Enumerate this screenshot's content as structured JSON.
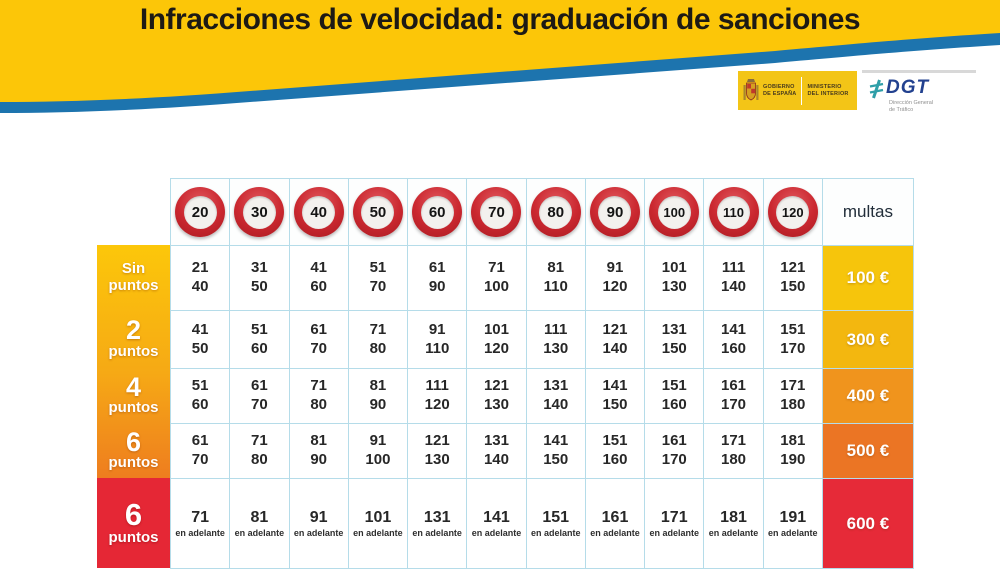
{
  "title": "Infracciones de velocidad: graduación de sanciones",
  "logos": {
    "gobierno": {
      "line1": "GOBIERNO",
      "line2": "DE ESPAÑA"
    },
    "ministerio": {
      "line1": "MINISTERIO",
      "line2": "DEL INTERIOR"
    },
    "dgt": {
      "name": "DGT",
      "subtitle1": "Dirección General",
      "subtitle2": "de Tráfico"
    }
  },
  "colors": {
    "banner_yellow": "#fcc608",
    "banner_blue": "#1d74ae",
    "grid_border": "#b5dce9",
    "label_gradient_top": "#fcc70a",
    "label_gradient_bottom": "#ee7d1f",
    "red_row": "#e52735",
    "fine_colors": [
      "#f6c50c",
      "#f3b70f",
      "#f0941d",
      "#eb7524",
      "#e62a38"
    ]
  },
  "table": {
    "speed_limits": [
      "20",
      "30",
      "40",
      "50",
      "60",
      "70",
      "80",
      "90",
      "100",
      "110",
      "120"
    ],
    "multas_label": "multas",
    "onward_note": "en adelante",
    "rows": [
      {
        "label_top": "Sin",
        "label_bottom": "puntos",
        "fine": "100 €",
        "ranges": [
          [
            "21",
            "40"
          ],
          [
            "31",
            "50"
          ],
          [
            "41",
            "60"
          ],
          [
            "51",
            "70"
          ],
          [
            "61",
            "90"
          ],
          [
            "71",
            "100"
          ],
          [
            "81",
            "110"
          ],
          [
            "91",
            "120"
          ],
          [
            "101",
            "130"
          ],
          [
            "111",
            "140"
          ],
          [
            "121",
            "150"
          ]
        ]
      },
      {
        "label_top": "2",
        "label_bottom": "puntos",
        "fine": "300 €",
        "ranges": [
          [
            "41",
            "50"
          ],
          [
            "51",
            "60"
          ],
          [
            "61",
            "70"
          ],
          [
            "71",
            "80"
          ],
          [
            "91",
            "110"
          ],
          [
            "101",
            "120"
          ],
          [
            "111",
            "130"
          ],
          [
            "121",
            "140"
          ],
          [
            "131",
            "150"
          ],
          [
            "141",
            "160"
          ],
          [
            "151",
            "170"
          ]
        ]
      },
      {
        "label_top": "4",
        "label_bottom": "puntos",
        "fine": "400 €",
        "ranges": [
          [
            "51",
            "60"
          ],
          [
            "61",
            "70"
          ],
          [
            "71",
            "80"
          ],
          [
            "81",
            "90"
          ],
          [
            "111",
            "120"
          ],
          [
            "121",
            "130"
          ],
          [
            "131",
            "140"
          ],
          [
            "141",
            "150"
          ],
          [
            "151",
            "160"
          ],
          [
            "161",
            "170"
          ],
          [
            "171",
            "180"
          ]
        ]
      },
      {
        "label_top": "6",
        "label_bottom": "puntos",
        "fine": "500 €",
        "ranges": [
          [
            "61",
            "70"
          ],
          [
            "71",
            "80"
          ],
          [
            "81",
            "90"
          ],
          [
            "91",
            "100"
          ],
          [
            "121",
            "130"
          ],
          [
            "131",
            "140"
          ],
          [
            "141",
            "150"
          ],
          [
            "151",
            "160"
          ],
          [
            "161",
            "170"
          ],
          [
            "171",
            "180"
          ],
          [
            "181",
            "190"
          ]
        ]
      },
      {
        "label_top": "6",
        "label_bottom": "puntos",
        "fine": "600 €",
        "onward": [
          "71",
          "81",
          "91",
          "101",
          "131",
          "141",
          "151",
          "161",
          "171",
          "181",
          "191"
        ]
      }
    ]
  },
  "chart_data": {
    "type": "table",
    "title": "Infracciones de velocidad: graduación de sanciones",
    "columns_speed_limit_kmh": [
      20,
      30,
      40,
      50,
      60,
      70,
      80,
      90,
      100,
      110,
      120
    ],
    "fines_column_label": "multas",
    "rows": [
      {
        "penalty": "Sin puntos",
        "fine_eur": 100,
        "speed_ranges_kmh": [
          [
            21,
            40
          ],
          [
            31,
            50
          ],
          [
            41,
            60
          ],
          [
            51,
            70
          ],
          [
            61,
            90
          ],
          [
            71,
            100
          ],
          [
            81,
            110
          ],
          [
            91,
            120
          ],
          [
            101,
            130
          ],
          [
            111,
            140
          ],
          [
            121,
            150
          ]
        ]
      },
      {
        "penalty": "2 puntos",
        "fine_eur": 300,
        "speed_ranges_kmh": [
          [
            41,
            50
          ],
          [
            51,
            60
          ],
          [
            61,
            70
          ],
          [
            71,
            80
          ],
          [
            91,
            110
          ],
          [
            101,
            120
          ],
          [
            111,
            130
          ],
          [
            121,
            140
          ],
          [
            131,
            150
          ],
          [
            141,
            160
          ],
          [
            151,
            170
          ]
        ]
      },
      {
        "penalty": "4 puntos",
        "fine_eur": 400,
        "speed_ranges_kmh": [
          [
            51,
            60
          ],
          [
            61,
            70
          ],
          [
            71,
            80
          ],
          [
            81,
            90
          ],
          [
            111,
            120
          ],
          [
            121,
            130
          ],
          [
            131,
            140
          ],
          [
            141,
            150
          ],
          [
            151,
            160
          ],
          [
            161,
            170
          ],
          [
            171,
            180
          ]
        ]
      },
      {
        "penalty": "6 puntos",
        "fine_eur": 500,
        "speed_ranges_kmh": [
          [
            61,
            70
          ],
          [
            71,
            80
          ],
          [
            81,
            90
          ],
          [
            91,
            100
          ],
          [
            121,
            130
          ],
          [
            131,
            140
          ],
          [
            141,
            150
          ],
          [
            151,
            160
          ],
          [
            161,
            170
          ],
          [
            171,
            180
          ],
          [
            181,
            190
          ]
        ]
      },
      {
        "penalty": "6 puntos",
        "fine_eur": 600,
        "note": "en adelante",
        "speed_from_kmh": [
          71,
          81,
          91,
          101,
          131,
          141,
          151,
          161,
          171,
          181,
          191
        ]
      }
    ]
  }
}
